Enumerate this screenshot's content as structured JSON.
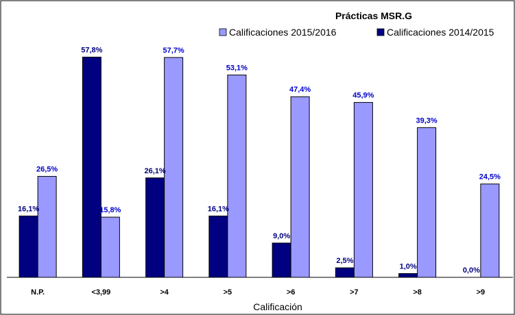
{
  "chart_data": {
    "type": "bar",
    "title": "Prácticas MSR.G",
    "xlabel": "Calificación",
    "ylabel": "",
    "ylim": [
      0,
      62
    ],
    "grid": false,
    "legend_position": "top-right",
    "categories": [
      "N.P.",
      "<3,99",
      ">4",
      ">5",
      ">6",
      ">7",
      ">8",
      ">9"
    ],
    "series": [
      {
        "name": "Calificaciones 2014/2015",
        "color": "#000080",
        "values": [
          16.1,
          57.8,
          26.1,
          16.1,
          9.0,
          2.5,
          1.0,
          0.0
        ],
        "labels": [
          "16,1%",
          "57,8%",
          "26,1%",
          "16,1%",
          "9,0%",
          "2,5%",
          "1,0%",
          "0,0%"
        ]
      },
      {
        "name": "Calificaciones 2015/2016",
        "color": "#9999ff",
        "values": [
          26.5,
          15.8,
          57.7,
          53.1,
          47.4,
          45.9,
          39.3,
          24.5
        ],
        "labels": [
          "26,5%",
          "15,8%",
          "57,7%",
          "53,1%",
          "47,4%",
          "45,9%",
          "39,3%",
          "24,5%"
        ]
      }
    ],
    "label_color": "#0000cc"
  }
}
